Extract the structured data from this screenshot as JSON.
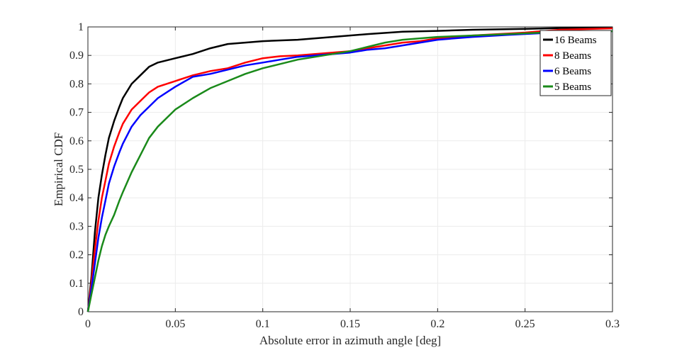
{
  "chart_data": {
    "type": "line",
    "title": "",
    "xlabel": "Absolute error in azimuth angle [deg]",
    "ylabel": "Empirical CDF",
    "xlim": [
      0,
      0.3
    ],
    "ylim": [
      0,
      1
    ],
    "grid": true,
    "legend_position": "top-right",
    "x_ticks": [
      0,
      0.05,
      0.1,
      0.15,
      0.2,
      0.25,
      0.3
    ],
    "x_tick_labels": [
      "0",
      "0.05",
      "0.1",
      "0.15",
      "0.2",
      "0.25",
      "0.3"
    ],
    "y_ticks": [
      0,
      0.1,
      0.2,
      0.3,
      0.4,
      0.5,
      0.6,
      0.7,
      0.8,
      0.9,
      1
    ],
    "y_tick_labels": [
      "0",
      "0.1",
      "0.2",
      "0.3",
      "0.4",
      "0.5",
      "0.6",
      "0.7",
      "0.8",
      "0.9",
      "1"
    ],
    "series": [
      {
        "name": "16 Beams",
        "color": "#000000",
        "points": [
          [
            0,
            0
          ],
          [
            0.002,
            0.12
          ],
          [
            0.004,
            0.28
          ],
          [
            0.006,
            0.4
          ],
          [
            0.008,
            0.48
          ],
          [
            0.01,
            0.55
          ],
          [
            0.012,
            0.61
          ],
          [
            0.015,
            0.67
          ],
          [
            0.018,
            0.72
          ],
          [
            0.02,
            0.75
          ],
          [
            0.025,
            0.8
          ],
          [
            0.03,
            0.83
          ],
          [
            0.035,
            0.86
          ],
          [
            0.04,
            0.875
          ],
          [
            0.05,
            0.89
          ],
          [
            0.06,
            0.905
          ],
          [
            0.07,
            0.925
          ],
          [
            0.08,
            0.94
          ],
          [
            0.09,
            0.945
          ],
          [
            0.1,
            0.95
          ],
          [
            0.12,
            0.955
          ],
          [
            0.14,
            0.965
          ],
          [
            0.16,
            0.975
          ],
          [
            0.18,
            0.983
          ],
          [
            0.2,
            0.986
          ],
          [
            0.22,
            0.99
          ],
          [
            0.25,
            0.993
          ],
          [
            0.27,
            0.996
          ],
          [
            0.3,
            0.998
          ]
        ]
      },
      {
        "name": "8 Beams",
        "color": "#ff0000",
        "points": [
          [
            0,
            0
          ],
          [
            0.002,
            0.1
          ],
          [
            0.004,
            0.22
          ],
          [
            0.006,
            0.32
          ],
          [
            0.008,
            0.4
          ],
          [
            0.01,
            0.46
          ],
          [
            0.012,
            0.52
          ],
          [
            0.015,
            0.58
          ],
          [
            0.018,
            0.63
          ],
          [
            0.02,
            0.66
          ],
          [
            0.025,
            0.71
          ],
          [
            0.03,
            0.74
          ],
          [
            0.035,
            0.77
          ],
          [
            0.04,
            0.79
          ],
          [
            0.05,
            0.81
          ],
          [
            0.06,
            0.83
          ],
          [
            0.07,
            0.845
          ],
          [
            0.08,
            0.855
          ],
          [
            0.09,
            0.875
          ],
          [
            0.1,
            0.89
          ],
          [
            0.11,
            0.897
          ],
          [
            0.12,
            0.9
          ],
          [
            0.13,
            0.905
          ],
          [
            0.14,
            0.91
          ],
          [
            0.15,
            0.915
          ],
          [
            0.16,
            0.925
          ],
          [
            0.17,
            0.935
          ],
          [
            0.18,
            0.945
          ],
          [
            0.19,
            0.95
          ],
          [
            0.2,
            0.96
          ],
          [
            0.22,
            0.97
          ],
          [
            0.25,
            0.98
          ],
          [
            0.27,
            0.99
          ],
          [
            0.3,
            0.995
          ]
        ]
      },
      {
        "name": "6 Beams",
        "color": "#0000ff",
        "points": [
          [
            0,
            0
          ],
          [
            0.002,
            0.08
          ],
          [
            0.004,
            0.17
          ],
          [
            0.006,
            0.26
          ],
          [
            0.008,
            0.33
          ],
          [
            0.01,
            0.39
          ],
          [
            0.012,
            0.45
          ],
          [
            0.015,
            0.51
          ],
          [
            0.018,
            0.56
          ],
          [
            0.02,
            0.59
          ],
          [
            0.025,
            0.65
          ],
          [
            0.03,
            0.69
          ],
          [
            0.035,
            0.72
          ],
          [
            0.04,
            0.75
          ],
          [
            0.05,
            0.79
          ],
          [
            0.06,
            0.825
          ],
          [
            0.07,
            0.835
          ],
          [
            0.08,
            0.85
          ],
          [
            0.09,
            0.865
          ],
          [
            0.1,
            0.875
          ],
          [
            0.11,
            0.885
          ],
          [
            0.12,
            0.895
          ],
          [
            0.13,
            0.9
          ],
          [
            0.14,
            0.905
          ],
          [
            0.15,
            0.91
          ],
          [
            0.16,
            0.92
          ],
          [
            0.17,
            0.925
          ],
          [
            0.18,
            0.935
          ],
          [
            0.19,
            0.945
          ],
          [
            0.2,
            0.955
          ],
          [
            0.22,
            0.965
          ],
          [
            0.24,
            0.972
          ],
          [
            0.26,
            0.978
          ],
          [
            0.28,
            0.983
          ],
          [
            0.3,
            0.985
          ]
        ]
      },
      {
        "name": "5 Beams",
        "color": "#1a8a1a",
        "points": [
          [
            0,
            0
          ],
          [
            0.002,
            0.06
          ],
          [
            0.004,
            0.12
          ],
          [
            0.006,
            0.18
          ],
          [
            0.008,
            0.23
          ],
          [
            0.01,
            0.27
          ],
          [
            0.012,
            0.3
          ],
          [
            0.015,
            0.34
          ],
          [
            0.018,
            0.39
          ],
          [
            0.02,
            0.42
          ],
          [
            0.025,
            0.49
          ],
          [
            0.03,
            0.55
          ],
          [
            0.035,
            0.61
          ],
          [
            0.04,
            0.65
          ],
          [
            0.05,
            0.71
          ],
          [
            0.06,
            0.75
          ],
          [
            0.07,
            0.785
          ],
          [
            0.08,
            0.81
          ],
          [
            0.09,
            0.835
          ],
          [
            0.1,
            0.855
          ],
          [
            0.11,
            0.87
          ],
          [
            0.12,
            0.885
          ],
          [
            0.13,
            0.895
          ],
          [
            0.14,
            0.905
          ],
          [
            0.15,
            0.915
          ],
          [
            0.16,
            0.93
          ],
          [
            0.17,
            0.945
          ],
          [
            0.18,
            0.955
          ],
          [
            0.19,
            0.96
          ],
          [
            0.2,
            0.965
          ],
          [
            0.22,
            0.97
          ],
          [
            0.24,
            0.975
          ],
          [
            0.26,
            0.98
          ],
          [
            0.28,
            0.983
          ],
          [
            0.3,
            0.985
          ]
        ]
      }
    ]
  }
}
